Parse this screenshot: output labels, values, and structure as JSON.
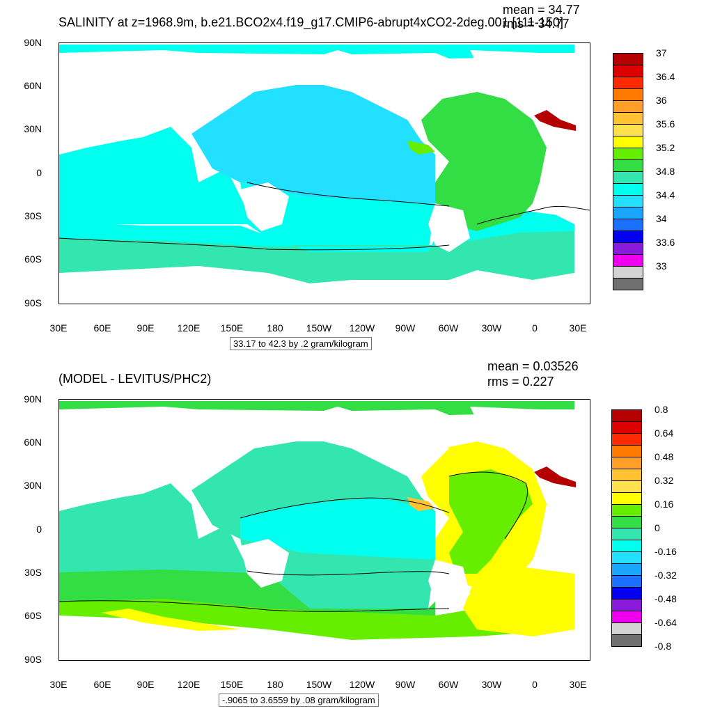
{
  "panel_top": {
    "title": "SALINITY at z=1968.9m, b.e21.BCO2x4.f19_g17.CMIP6-abrupt4xCO2-2deg.001 [111-150]",
    "mean_label": "mean = 34.77",
    "rms_label": "rms = 34.77",
    "subtitle": "33.17 to 42.3 by .2 gram/kilogram",
    "colorbar": {
      "colors": [
        "#b40000",
        "#dc0000",
        "#ff2a00",
        "#ff7a00",
        "#ff9f2a",
        "#ffc233",
        "#ffe14d",
        "#ffff00",
        "#66ee00",
        "#33dd44",
        "#33e6b0",
        "#00ffee",
        "#22e0ff",
        "#1aa6ff",
        "#1a70ff",
        "#0000ee",
        "#8a1adc",
        "#ee00ee",
        "#d3d3d3",
        "#707070"
      ],
      "labels": [
        "37",
        "36.4",
        "36",
        "35.6",
        "35.2",
        "34.8",
        "34.4",
        "34",
        "33.6",
        "33"
      ]
    }
  },
  "panel_bottom": {
    "title": "(MODEL - LEVITUS/PHC2)",
    "mean_label": "mean = 0.03526",
    "rms_label": "rms = 0.227",
    "subtitle": "-.9065 to 3.6559 by .08 gram/kilogram",
    "colorbar": {
      "colors": [
        "#b40000",
        "#dc0000",
        "#ff2a00",
        "#ff7a00",
        "#ff9f2a",
        "#ffc233",
        "#ffe14d",
        "#ffff00",
        "#66ee00",
        "#33dd44",
        "#33e6b0",
        "#00ffee",
        "#22e0ff",
        "#1aa6ff",
        "#1a70ff",
        "#0000ee",
        "#8a1adc",
        "#ee00ee",
        "#d3d3d3",
        "#707070"
      ],
      "labels": [
        "0.8",
        "0.64",
        "0.48",
        "0.32",
        "0.16",
        "0",
        "-0.16",
        "-0.32",
        "-0.48",
        "-0.64",
        "-0.8"
      ]
    }
  },
  "axes": {
    "lat_labels": [
      "90N",
      "60N",
      "30N",
      "0",
      "30S",
      "60S",
      "90S"
    ],
    "lon_labels": [
      "30E",
      "60E",
      "90E",
      "120E",
      "150E",
      "180",
      "150W",
      "120W",
      "90W",
      "60W",
      "30W",
      "0",
      "30E"
    ]
  }
}
